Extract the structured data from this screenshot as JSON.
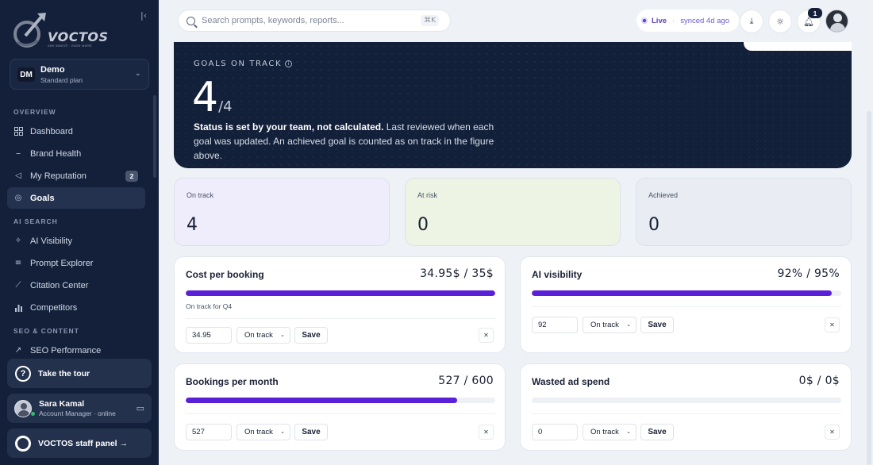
{
  "brand": {
    "name": "VOCTOS",
    "tagline": "one search · more worth"
  },
  "workspace": {
    "badge": "DM",
    "name": "Demo",
    "plan": "Standard plan"
  },
  "sidebar": {
    "sections": [
      "OVERVIEW",
      "AI SEARCH",
      "SEO & CONTENT"
    ],
    "items": [
      {
        "label": "Dashboard",
        "icon": "grid-icon"
      },
      {
        "label": "Brand Health",
        "icon": "pulse-icon"
      },
      {
        "label": "My Reputation",
        "icon": "megaphone-icon",
        "count": "2"
      },
      {
        "label": "Goals",
        "icon": "target-icon",
        "active": true
      },
      {
        "label": "AI Visibility",
        "icon": "sparkle-icon"
      },
      {
        "label": "Prompt Explorer",
        "icon": "list-icon"
      },
      {
        "label": "Citation Center",
        "icon": "link-icon"
      },
      {
        "label": "Competitors",
        "icon": "bar-chart-icon"
      },
      {
        "label": "SEO Performance",
        "icon": "trend-icon"
      }
    ],
    "tour": "Take the tour",
    "user": {
      "name": "Sara Kamal",
      "role": "Account Manager · online"
    },
    "staff_panel": "VOCTOS staff panel →"
  },
  "topbar": {
    "search_placeholder": "Search prompts, keywords, reports...",
    "shortcut": "⌘K",
    "live_label": "Live",
    "synced": "synced 4d ago",
    "notification_count": "1"
  },
  "hero": {
    "label": "GOALS ON TRACK",
    "value": "4",
    "total": "/4",
    "status_bold": "Status is set by your team, not calculated.",
    "status_rest": " Last reviewed when each goal was updated. An achieved goal is counted as on track in the figure above."
  },
  "stats": [
    {
      "label": "On track",
      "value": "4",
      "bg": "#efecfc"
    },
    {
      "label": "At risk",
      "value": "0",
      "bg": "#eef4e3"
    },
    {
      "label": "Achieved",
      "value": "0",
      "bg": "#e9ecf3"
    }
  ],
  "goals": [
    {
      "title": "Cost per booking",
      "ratio": "34.95$ / 35$",
      "progress": 1.0,
      "note": "On track for Q4",
      "input": "34.95",
      "status": "On track",
      "save": "Save"
    },
    {
      "title": "AI visibility",
      "ratio": "92% / 95%",
      "progress": 0.97,
      "note": "",
      "input": "92",
      "status": "On track",
      "save": "Save"
    },
    {
      "title": "Bookings per month",
      "ratio": "527 / 600",
      "progress": 0.878,
      "note": "",
      "input": "527",
      "status": "On track",
      "save": "Save"
    },
    {
      "title": "Wasted ad spend",
      "ratio": "0$ / 0$",
      "progress": 0,
      "note": "",
      "input": "0",
      "status": "On track",
      "save": "Save"
    }
  ],
  "colors": {
    "sidebar_bg": "#14203a",
    "accent": "#5a20d8",
    "page_bg": "#eef1f6"
  }
}
